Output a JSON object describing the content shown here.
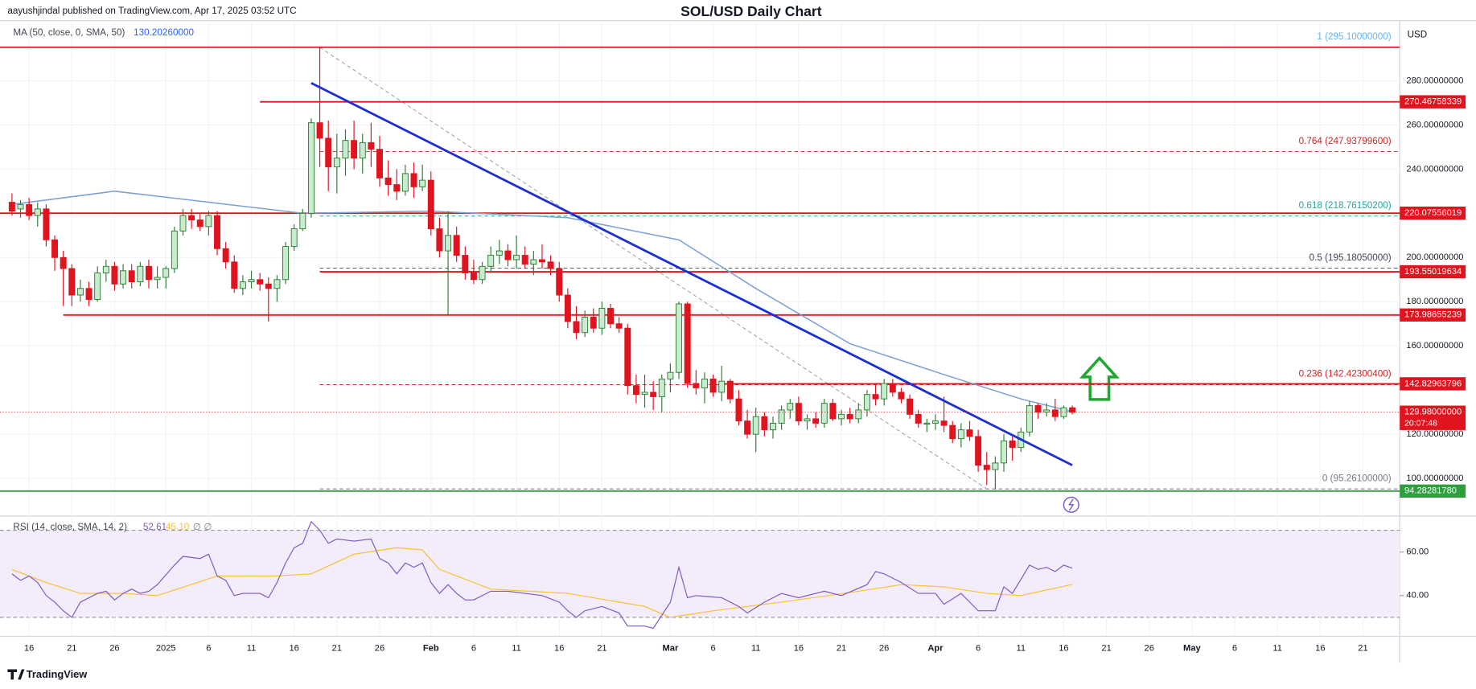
{
  "chart_data": {
    "type": "candlestick",
    "title": "SOL/USD Daily Chart",
    "published": "aayushjindal published on TradingView.com, Apr 17, 2025 03:52 UTC",
    "currency": "USD",
    "brand": "TradingView",
    "up_color": "#c9ebd0",
    "up_border": "#2e7d32",
    "down_color": "#e0141e",
    "xlim": [
      -19.4,
      144.3
    ],
    "xticks": [
      {
        "value": -16,
        "label": "16"
      },
      {
        "value": -11,
        "label": "21"
      },
      {
        "value": -6,
        "label": "26"
      },
      {
        "value": 0,
        "label": "2025"
      },
      {
        "value": 5,
        "label": "6"
      },
      {
        "value": 10,
        "label": "11"
      },
      {
        "value": 15,
        "label": "16"
      },
      {
        "value": 20,
        "label": "21"
      },
      {
        "value": 25,
        "label": "26"
      },
      {
        "value": 31,
        "label": "Feb"
      },
      {
        "value": 36,
        "label": "6"
      },
      {
        "value": 41,
        "label": "11"
      },
      {
        "value": 46,
        "label": "16"
      },
      {
        "value": 51,
        "label": "21"
      },
      {
        "value": 59,
        "label": "Mar"
      },
      {
        "value": 64,
        "label": "6"
      },
      {
        "value": 69,
        "label": "11"
      },
      {
        "value": 74,
        "label": "16"
      },
      {
        "value": 79,
        "label": "21"
      },
      {
        "value": 84,
        "label": "26"
      },
      {
        "value": 90,
        "label": "Apr"
      },
      {
        "value": 95,
        "label": "6"
      },
      {
        "value": 100,
        "label": "11"
      },
      {
        "value": 105,
        "label": "16"
      },
      {
        "value": 110,
        "label": "21"
      },
      {
        "value": 115,
        "label": "26"
      },
      {
        "value": 120,
        "label": "May"
      },
      {
        "value": 125,
        "label": "6"
      },
      {
        "value": 130,
        "label": "11"
      },
      {
        "value": 135,
        "label": "16"
      },
      {
        "value": 140,
        "label": "21"
      }
    ],
    "ylim": [
      83.4,
      307.2
    ],
    "yticks": [
      {
        "value": 100,
        "label": "100.00000000"
      },
      {
        "value": 120,
        "label": "120.00000000"
      },
      {
        "value": 160,
        "label": "160.00000000"
      },
      {
        "value": 180,
        "label": "180.00000000"
      },
      {
        "value": 200,
        "label": "200.00000000"
      },
      {
        "value": 220,
        "label": "220.00000000"
      },
      {
        "value": 240,
        "label": "240.00000000"
      },
      {
        "value": 260,
        "label": "260.00000000"
      },
      {
        "value": 280,
        "label": "280.00000000"
      }
    ],
    "x": [
      -18,
      -17,
      -16,
      -15,
      -14,
      -13,
      -12,
      -11,
      -10,
      -9,
      -8,
      -7,
      -6,
      -5,
      -4,
      -3,
      -2,
      -1,
      0,
      1,
      2,
      3,
      4,
      5,
      6,
      7,
      8,
      9,
      10,
      11,
      12,
      13,
      14,
      15,
      16,
      17,
      18,
      19,
      20,
      21,
      22,
      23,
      24,
      25,
      26,
      27,
      28,
      29,
      30,
      31,
      32,
      33,
      34,
      35,
      36,
      37,
      38,
      39,
      40,
      41,
      42,
      43,
      44,
      45,
      46,
      47,
      48,
      49,
      50,
      51,
      52,
      53,
      54,
      55,
      56,
      57,
      58,
      59,
      60,
      61,
      62,
      63,
      64,
      65,
      66,
      67,
      68,
      69,
      70,
      71,
      72,
      73,
      74,
      75,
      76,
      77,
      78,
      79,
      80,
      81,
      82,
      83,
      84,
      85,
      86,
      87,
      88,
      89,
      90,
      91,
      92,
      93,
      94,
      95,
      96,
      97,
      98,
      99,
      100,
      101,
      102,
      103,
      104,
      105,
      106
    ],
    "ohlc": [
      [
        225,
        229,
        219,
        221
      ],
      [
        222,
        226,
        218,
        224
      ],
      [
        224,
        227,
        217,
        219
      ],
      [
        219,
        225,
        214,
        222
      ],
      [
        222,
        224,
        205,
        208
      ],
      [
        208,
        210,
        194,
        200
      ],
      [
        200,
        203,
        178,
        195
      ],
      [
        195,
        197,
        178,
        183
      ],
      [
        183,
        190,
        180,
        186
      ],
      [
        186,
        189,
        178,
        181
      ],
      [
        181,
        196,
        180,
        193
      ],
      [
        193,
        199,
        189,
        196
      ],
      [
        196,
        198,
        185,
        188
      ],
      [
        188,
        197,
        186,
        194
      ],
      [
        194,
        197,
        186,
        189
      ],
      [
        189,
        198,
        187,
        196
      ],
      [
        196,
        199,
        186,
        190
      ],
      [
        190,
        196,
        186,
        191
      ],
      [
        191,
        196,
        186,
        195
      ],
      [
        195,
        214,
        193,
        212
      ],
      [
        212,
        222,
        210,
        219
      ],
      [
        219,
        222,
        213,
        217
      ],
      [
        217,
        220,
        212,
        214
      ],
      [
        214,
        221,
        210,
        219
      ],
      [
        219,
        221,
        201,
        204
      ],
      [
        204,
        207,
        195,
        198
      ],
      [
        198,
        201,
        184,
        186
      ],
      [
        186,
        192,
        183,
        189
      ],
      [
        189,
        194,
        186,
        190
      ],
      [
        190,
        193,
        185,
        188
      ],
      [
        188,
        191,
        171,
        186
      ],
      [
        186,
        192,
        180,
        190
      ],
      [
        190,
        207,
        188,
        205
      ],
      [
        205,
        215,
        203,
        213
      ],
      [
        213,
        222,
        212,
        220
      ],
      [
        220,
        263,
        218,
        261
      ],
      [
        261,
        295,
        241,
        254
      ],
      [
        254,
        262,
        230,
        241
      ],
      [
        241,
        256,
        229,
        245
      ],
      [
        245,
        258,
        237,
        253
      ],
      [
        253,
        262,
        240,
        245
      ],
      [
        245,
        256,
        238,
        252
      ],
      [
        252,
        261,
        241,
        249
      ],
      [
        249,
        255,
        232,
        236
      ],
      [
        236,
        244,
        228,
        233
      ],
      [
        233,
        240,
        226,
        230
      ],
      [
        230,
        242,
        228,
        238
      ],
      [
        238,
        243,
        227,
        232
      ],
      [
        232,
        242,
        230,
        235
      ],
      [
        235,
        239,
        210,
        213
      ],
      [
        213,
        218,
        200,
        203
      ],
      [
        203,
        221,
        174,
        210
      ],
      [
        210,
        214,
        198,
        201
      ],
      [
        201,
        205,
        190,
        193
      ],
      [
        193,
        199,
        188,
        190
      ],
      [
        190,
        198,
        188,
        196
      ],
      [
        196,
        205,
        193,
        201
      ],
      [
        201,
        208,
        197,
        203
      ],
      [
        203,
        206,
        196,
        199
      ],
      [
        199,
        210,
        195,
        201
      ],
      [
        201,
        205,
        195,
        197
      ],
      [
        197,
        203,
        192,
        199
      ],
      [
        199,
        206,
        195,
        198
      ],
      [
        198,
        201,
        192,
        195
      ],
      [
        195,
        198,
        180,
        183
      ],
      [
        183,
        186,
        168,
        171
      ],
      [
        171,
        178,
        163,
        166
      ],
      [
        166,
        176,
        164,
        173
      ],
      [
        173,
        177,
        166,
        168
      ],
      [
        168,
        180,
        165,
        177
      ],
      [
        177,
        179,
        168,
        170
      ],
      [
        170,
        173,
        166,
        168
      ],
      [
        168,
        170,
        138,
        142
      ],
      [
        142,
        147,
        134,
        138
      ],
      [
        138,
        147,
        132,
        139
      ],
      [
        139,
        144,
        131,
        137
      ],
      [
        137,
        147,
        130,
        145
      ],
      [
        145,
        152,
        139,
        148
      ],
      [
        148,
        180,
        145,
        179
      ],
      [
        179,
        180,
        141,
        143
      ],
      [
        143,
        149,
        138,
        141
      ],
      [
        141,
        148,
        134,
        145
      ],
      [
        145,
        147,
        137,
        139
      ],
      [
        139,
        151,
        135,
        144
      ],
      [
        144,
        145,
        134,
        136
      ],
      [
        136,
        140,
        124,
        126
      ],
      [
        126,
        131,
        118,
        120
      ],
      [
        120,
        132,
        112,
        128
      ],
      [
        128,
        130,
        119,
        122
      ],
      [
        122,
        128,
        118,
        125
      ],
      [
        125,
        133,
        122,
        131
      ],
      [
        131,
        136,
        127,
        134
      ],
      [
        134,
        137,
        124,
        126
      ],
      [
        126,
        129,
        122,
        127
      ],
      [
        127,
        130,
        123,
        125
      ],
      [
        125,
        136,
        123,
        134
      ],
      [
        134,
        136,
        126,
        127
      ],
      [
        127,
        131,
        124,
        129
      ],
      [
        129,
        132,
        125,
        127
      ],
      [
        127,
        134,
        125,
        131
      ],
      [
        131,
        140,
        128,
        138
      ],
      [
        138,
        143,
        133,
        136
      ],
      [
        136,
        145,
        133,
        143
      ],
      [
        143,
        145,
        137,
        139
      ],
      [
        139,
        141,
        134,
        136
      ],
      [
        136,
        138,
        127,
        129
      ],
      [
        129,
        131,
        123,
        125
      ],
      [
        125,
        127,
        121,
        125
      ],
      [
        125,
        129,
        122,
        126
      ],
      [
        126,
        137,
        121,
        124
      ],
      [
        124,
        126,
        116,
        118
      ],
      [
        118,
        125,
        114,
        122
      ],
      [
        122,
        126,
        117,
        119
      ],
      [
        119,
        122,
        103,
        106
      ],
      [
        106,
        112,
        97,
        104
      ],
      [
        104,
        110,
        95,
        107
      ],
      [
        107,
        120,
        103,
        117
      ],
      [
        117,
        119,
        108,
        114
      ],
      [
        114,
        123,
        112,
        121
      ],
      [
        121,
        135,
        119,
        133
      ],
      [
        133,
        134,
        127,
        130
      ],
      [
        130,
        134,
        128,
        131
      ],
      [
        131,
        136,
        126,
        128
      ],
      [
        128,
        133,
        127,
        132
      ],
      [
        132,
        133,
        129,
        129.98
      ]
    ],
    "ma": {
      "name": "MA (50, close, 0, SMA, 50)",
      "last": {
        "value": 130.2026,
        "label": "130.20260000"
      },
      "color": "#7b9fd6",
      "x": [
        -18,
        -6,
        16,
        31,
        47,
        60,
        69,
        80,
        91,
        100,
        106
      ],
      "values": [
        224,
        230,
        220,
        221,
        218,
        208,
        186,
        161,
        147,
        136,
        130.2026
      ]
    },
    "trendline": {
      "color": "#1c2fd1",
      "x": [
        17,
        106
      ],
      "values": [
        279,
        106
      ]
    },
    "fib": {
      "x": [
        18,
        96
      ],
      "values": [
        295.1,
        95.261
      ],
      "levels": [
        {
          "value": 295.1,
          "label": "1 (295.10000000)",
          "color": "#64b5f6"
        },
        {
          "value": 247.937996,
          "label": "0.764 (247.93799600)",
          "color": "#c62828"
        },
        {
          "value": 218.761502,
          "label": "0.618 (218.76150200)",
          "color": "#26a69a"
        },
        {
          "value": 195.1805,
          "label": "0.5 (195.18050000)",
          "color": "#434651"
        },
        {
          "value": 142.423004,
          "label": "0.236 (142.42300400)",
          "color": "#c62828"
        },
        {
          "value": 95.261,
          "label": "0 (95.26100000)",
          "color": "#787b86"
        }
      ]
    },
    "price_lines": [
      {
        "value": 295.18,
        "color": "#e0141e"
      },
      {
        "value": 270.46758339,
        "label": "270.46758339",
        "color": "#e0141e",
        "from": 11
      },
      {
        "value": 220.07556019,
        "label": "220.07556019",
        "color": "#e0141e"
      },
      {
        "value": 193.55019634,
        "label": "193.55019634",
        "color": "#e0141e",
        "from": 18
      },
      {
        "value": 173.98655239,
        "label": "173.98655239",
        "color": "#e0141e",
        "from": -12
      },
      {
        "value": 142.82963796,
        "label": "142.82963796",
        "color": "#e0141e",
        "from": 65
      },
      {
        "value": 94.2828178,
        "label": "94.28281780",
        "color": "#2e9e3e"
      }
    ],
    "last_price": {
      "value": 129.98,
      "label": "129.98000000",
      "countdown": "20:07:48",
      "color": "#e0141e"
    },
    "rsi": {
      "name": "RSI (14, close, SMA, 14, 2)",
      "last": 52.61,
      "ma_last": {
        "value": 45.1,
        "label": "45.10"
      },
      "extra": "∅ ∅",
      "color": "#7e57c2",
      "ma_color": "#fbc02d",
      "band_color": "#f3ecfb",
      "ylim": [
        21.7,
        76.1
      ],
      "yticks": [
        {
          "value": 60,
          "label": "60.00"
        },
        {
          "value": 40,
          "label": "40.00"
        }
      ],
      "bands": [
        30,
        70
      ],
      "x": [
        -18,
        -17,
        -16,
        -15,
        -14,
        -13,
        -12,
        -11,
        -10,
        -8,
        -7,
        -6,
        -5,
        -4,
        -3,
        -2,
        -1,
        1,
        2,
        4,
        5,
        6,
        7,
        8,
        9,
        11,
        12,
        13,
        14,
        15,
        16,
        17,
        18,
        19,
        20,
        22,
        24,
        25,
        26,
        27,
        28,
        29,
        30,
        31,
        32,
        33,
        34,
        35,
        36,
        38,
        40,
        42,
        44,
        46,
        47,
        48,
        49,
        51,
        53,
        54,
        56,
        57,
        59,
        60,
        61,
        62,
        65,
        67,
        68,
        70,
        72,
        74,
        77,
        79,
        82,
        83,
        84,
        86,
        88,
        90,
        91,
        93,
        95,
        97,
        98,
        99,
        101,
        102,
        103,
        104,
        105,
        106
      ],
      "values": [
        50,
        47,
        49,
        46,
        40,
        37,
        33,
        30,
        37,
        41,
        42,
        38,
        41,
        43,
        41,
        42,
        45,
        54,
        58,
        57,
        59,
        49,
        47,
        40,
        41,
        41,
        39,
        46,
        55,
        62,
        64,
        74,
        70,
        64,
        66,
        65,
        66,
        57,
        55,
        50,
        55,
        53,
        55,
        46,
        41,
        45,
        41,
        38,
        38,
        42,
        42,
        41,
        40,
        37,
        33,
        30,
        33,
        35,
        32,
        26,
        26,
        25,
        37,
        53,
        39,
        40,
        39,
        35,
        32,
        37,
        41,
        39,
        42,
        40,
        45,
        51,
        50,
        46,
        41,
        41,
        36,
        41,
        33,
        33,
        44,
        41,
        54,
        52,
        53,
        51,
        54,
        52.61
      ],
      "ma_x": [
        -18,
        -14,
        -10,
        -5,
        -1,
        6,
        13,
        17,
        22,
        27,
        30,
        32,
        38,
        47,
        56,
        59,
        64,
        72,
        81,
        86,
        91,
        96,
        100,
        106
      ],
      "ma_values": [
        52,
        46,
        41,
        41,
        40,
        49,
        49,
        50,
        59,
        62,
        61,
        52,
        43,
        41,
        35,
        30,
        33,
        37,
        42,
        45,
        44,
        41,
        40,
        45.1
      ]
    }
  }
}
